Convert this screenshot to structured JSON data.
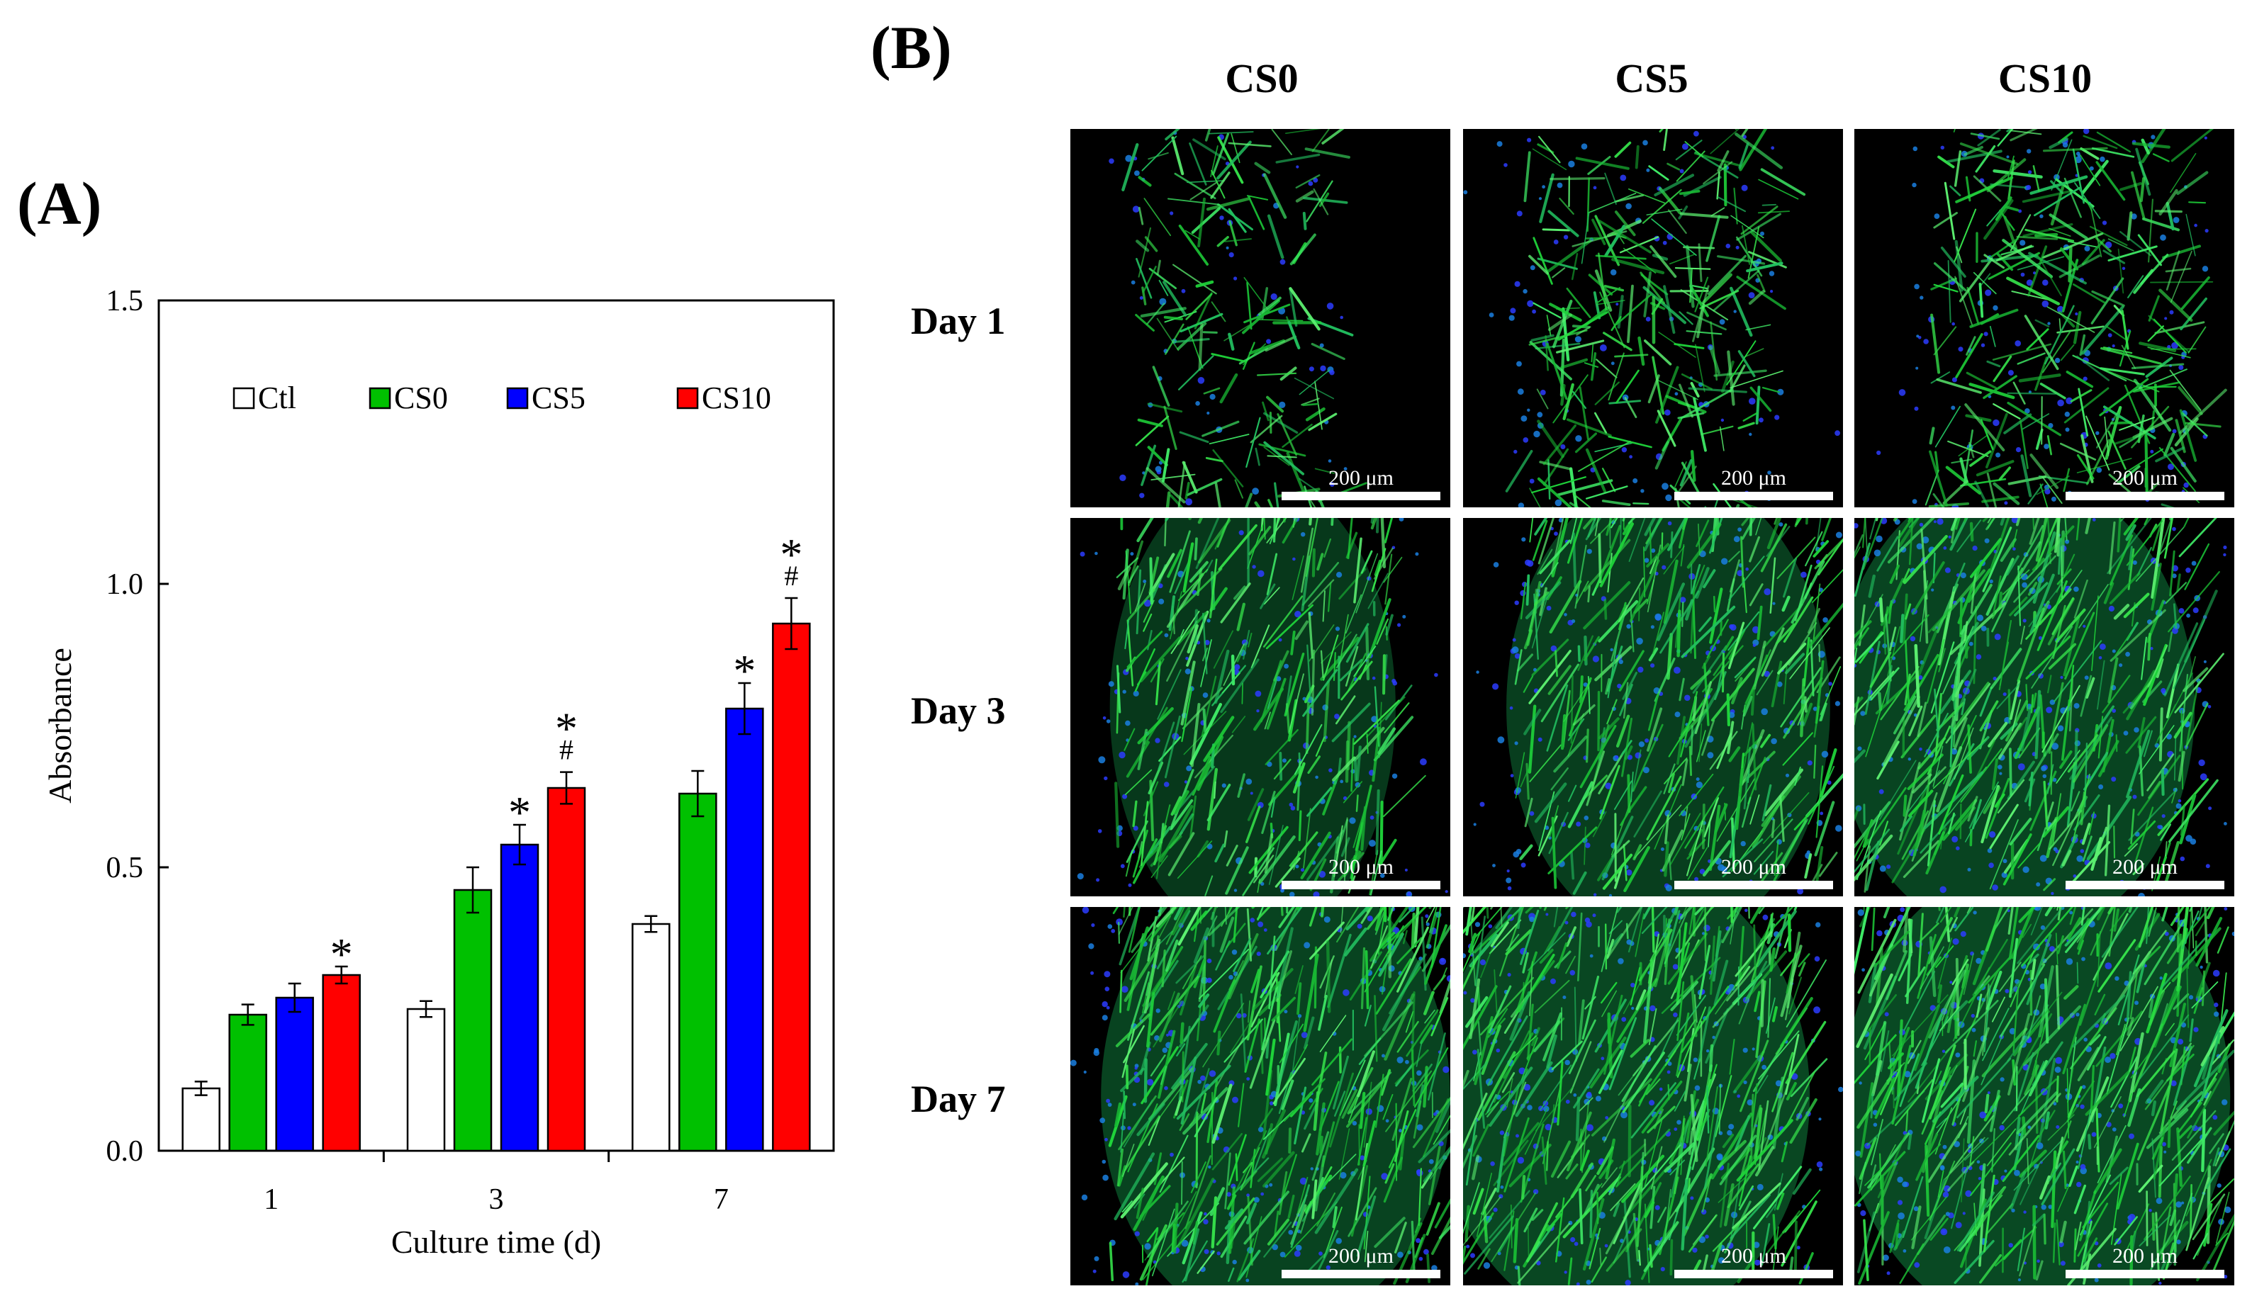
{
  "panels": {
    "a": "(A)",
    "b": "(B)"
  },
  "chart_data": {
    "type": "bar",
    "categories": [
      "1",
      "3",
      "7"
    ],
    "series": [
      {
        "name": "Ctl",
        "color": "#ffffff",
        "values": [
          0.11,
          0.25,
          0.4
        ],
        "errors": [
          0.012,
          0.014,
          0.014
        ],
        "marks": [
          "",
          "",
          ""
        ]
      },
      {
        "name": "CS0",
        "color": "#00c000",
        "values": [
          0.24,
          0.46,
          0.63
        ],
        "errors": [
          0.018,
          0.04,
          0.04
        ],
        "marks": [
          "",
          "",
          ""
        ]
      },
      {
        "name": "CS5",
        "color": "#0000ff",
        "values": [
          0.27,
          0.54,
          0.78
        ],
        "errors": [
          0.025,
          0.035,
          0.045
        ],
        "marks": [
          "",
          "*",
          "*"
        ]
      },
      {
        "name": "CS10",
        "color": "#ff0000",
        "values": [
          0.31,
          0.64,
          0.93
        ],
        "errors": [
          0.015,
          0.028,
          0.045
        ],
        "marks": [
          "*",
          "*\n#",
          "*\n#"
        ]
      }
    ],
    "xlabel": "Culture time (d)",
    "ylabel": "Absorbance",
    "ylim": [
      0,
      1.5
    ],
    "yticks": [
      "0.0",
      "0.5",
      "1.0",
      "1.5"
    ],
    "grid": false,
    "legend": "top, inside plot"
  },
  "micrographs": {
    "columns": [
      "CS0",
      "CS5",
      "CS10"
    ],
    "rows": [
      "Day 1",
      "Day 3",
      "Day 7"
    ],
    "scale_label": "200 μm"
  }
}
